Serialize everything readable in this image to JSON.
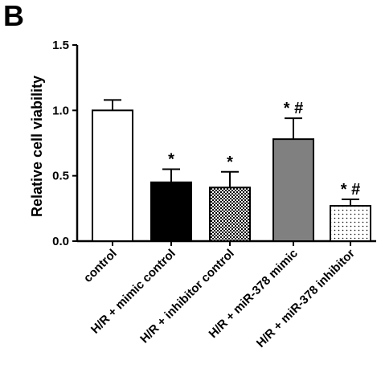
{
  "panel_label": "B",
  "chart_data": {
    "type": "bar",
    "title": "",
    "xlabel": "",
    "ylabel": "Relative cell viability",
    "ylim": [
      0,
      1.5
    ],
    "yticks": [
      "0.0",
      "0.5",
      "1.0",
      "1.5"
    ],
    "categories": [
      "control",
      "H/R + mimic control",
      "H/R + inhibitor control",
      "H/R + miR-378 mimic",
      "H/R + miR-378 inhibitor"
    ],
    "values": [
      1.0,
      0.45,
      0.41,
      0.78,
      0.27
    ],
    "errors": [
      0.08,
      0.1,
      0.12,
      0.16,
      0.05
    ],
    "annotations": [
      "",
      "*",
      "*",
      "* #",
      "* #"
    ],
    "fills": [
      "white",
      "black",
      "checker",
      "gray",
      "dots"
    ],
    "colors": {
      "axis": "#000000",
      "gray_bar": "#808080",
      "black_bar": "#000000"
    }
  }
}
